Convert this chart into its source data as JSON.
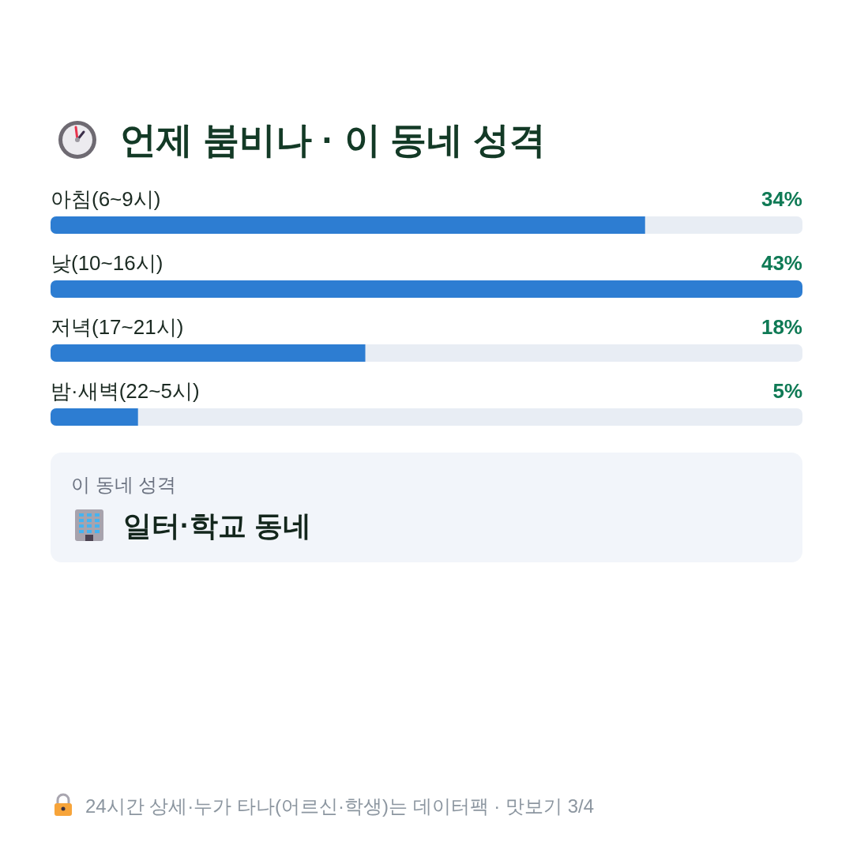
{
  "chart_data": {
    "type": "bar",
    "orientation": "horizontal",
    "title": "언제 붐비나 · 이 동네 성격",
    "categories": [
      "아침(6~9시)",
      "낮(10~16시)",
      "저녁(17~21시)",
      "밤·새벽(22~5시)"
    ],
    "values": [
      34,
      43,
      18,
      5
    ],
    "color": "#2d7dd2",
    "value_labels": [
      "34%",
      "43%",
      "18%",
      "5%"
    ],
    "annotations": [
      "이 동네 성격",
      "일터·학교 동네",
      "24시간 상세·누가 타나(어르신·학생)는 데이터팩 · 맛보기 3/4"
    ]
  }
}
